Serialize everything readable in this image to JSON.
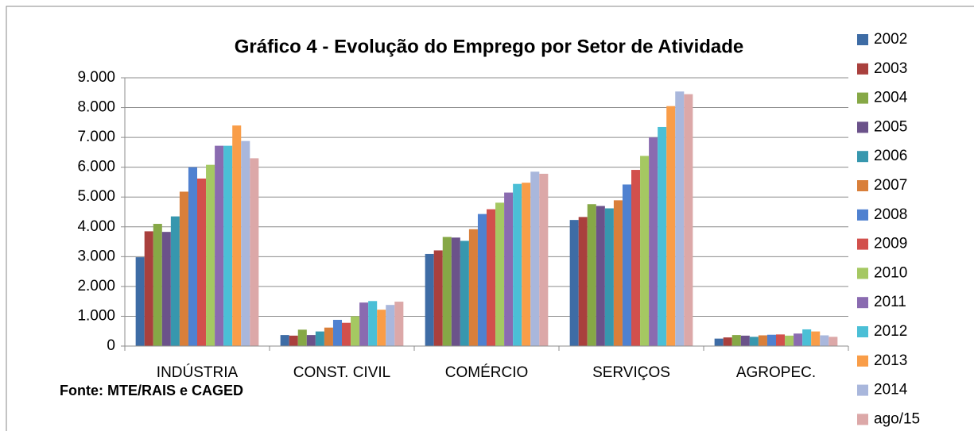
{
  "chart_data": {
    "type": "bar",
    "title": "Gráfico 4 - Evolução do Emprego por Setor de Atividade",
    "source": "Fonte: MTE/RAIS e CAGED",
    "categories": [
      "INDÚSTRIA",
      "CONST. CIVIL",
      "COMÉRCIO",
      "SERVIÇOS",
      "AGROPEC."
    ],
    "series": [
      {
        "name": "2002",
        "color": "#3e6ca5",
        "values": [
          2980,
          370,
          3090,
          4230,
          250
        ]
      },
      {
        "name": "2003",
        "color": "#a9403d",
        "values": [
          3850,
          350,
          3210,
          4330,
          290
        ]
      },
      {
        "name": "2004",
        "color": "#86a846",
        "values": [
          4100,
          550,
          3660,
          4760,
          370
        ]
      },
      {
        "name": "2005",
        "color": "#6b528a",
        "values": [
          3830,
          370,
          3640,
          4700,
          350
        ]
      },
      {
        "name": "2006",
        "color": "#3797ae",
        "values": [
          4350,
          490,
          3530,
          4620,
          310
        ]
      },
      {
        "name": "2007",
        "color": "#d97f3a",
        "values": [
          5180,
          620,
          3920,
          4890,
          360
        ]
      },
      {
        "name": "2008",
        "color": "#4f81d0",
        "values": [
          6000,
          880,
          4430,
          5420,
          380
        ]
      },
      {
        "name": "2009",
        "color": "#d2504c",
        "values": [
          5620,
          780,
          4590,
          5910,
          390
        ]
      },
      {
        "name": "2010",
        "color": "#a5c862",
        "values": [
          6080,
          1000,
          4810,
          6380,
          350
        ]
      },
      {
        "name": "2011",
        "color": "#8a6bb0",
        "values": [
          6720,
          1460,
          5150,
          7000,
          420
        ]
      },
      {
        "name": "2012",
        "color": "#4bbfd6",
        "values": [
          6720,
          1510,
          5440,
          7350,
          560
        ]
      },
      {
        "name": "2013",
        "color": "#f99d48",
        "values": [
          7400,
          1220,
          5480,
          8050,
          490
        ]
      },
      {
        "name": "2014",
        "color": "#a9b7dc",
        "values": [
          6880,
          1380,
          5850,
          8540,
          360
        ]
      },
      {
        "name": "ago/15",
        "color": "#dca8a8",
        "values": [
          6300,
          1490,
          5780,
          8450,
          310
        ]
      }
    ],
    "ylim": [
      0,
      9000
    ],
    "yticks": [
      0,
      {
        "value": 1000,
        "label": "1.000"
      },
      {
        "value": 2000,
        "label": "2.000"
      },
      {
        "value": 3000,
        "label": "3.000"
      },
      {
        "value": 4000,
        "label": "4.000"
      },
      {
        "value": 5000,
        "label": "5.000"
      },
      {
        "value": 6000,
        "label": "6.000"
      },
      {
        "value": 7000,
        "label": "7.000"
      },
      {
        "value": 8000,
        "label": "8.000"
      },
      {
        "value": 9000,
        "label": "9.000"
      }
    ],
    "grid": true,
    "legend": "right"
  }
}
